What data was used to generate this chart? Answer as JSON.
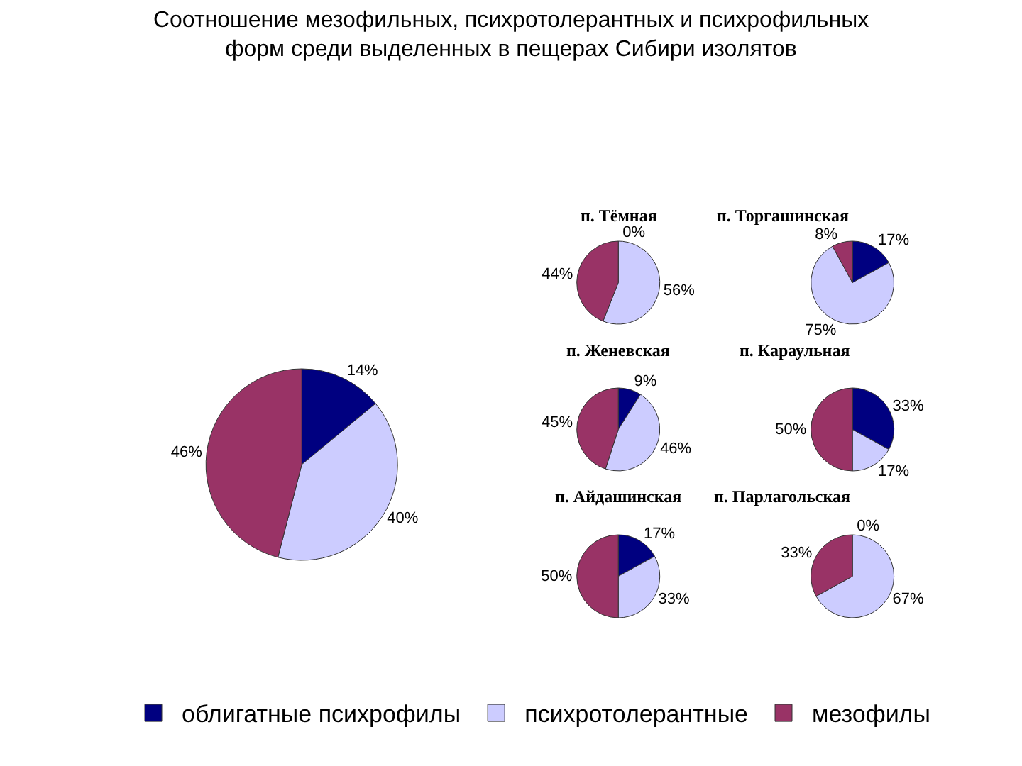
{
  "chart_data": [
    {
      "type": "pie",
      "title": "Соотношение мезофильных, психротолерантных и психрофильных форм среди выделенных в пещерах Сибири изолятов",
      "categories": [
        "облигатные психрофилы",
        "психротолерантные",
        "мезофилы"
      ],
      "values": [
        14,
        40,
        46
      ],
      "value_labels": [
        "14%",
        "40%",
        "46%"
      ],
      "colors": [
        "#000080",
        "#ccccff",
        "#993366"
      ],
      "legend": "bottom"
    },
    {
      "type": "pie",
      "title": "п. Тёмная",
      "categories": [
        null,
        null,
        null
      ],
      "values": [
        0,
        56,
        44
      ],
      "value_labels": [
        "0%",
        "56%",
        "44%"
      ],
      "colors": [
        "#000080",
        "#ccccff",
        "#993366"
      ]
    },
    {
      "type": "pie",
      "title": "п. Торгашинская",
      "categories": [
        null,
        null,
        null
      ],
      "values": [
        17,
        75,
        8
      ],
      "value_labels": [
        "17%",
        "75%",
        "8%"
      ],
      "colors": [
        "#000080",
        "#ccccff",
        "#993366"
      ]
    },
    {
      "type": "pie",
      "title": "п. Женевская",
      "categories": [
        null,
        null,
        null
      ],
      "values": [
        9,
        46,
        45
      ],
      "value_labels": [
        "9%",
        "46%",
        "45%"
      ],
      "colors": [
        "#000080",
        "#ccccff",
        "#993366"
      ]
    },
    {
      "type": "pie",
      "title": "п. Караульная",
      "categories": [
        null,
        null,
        null
      ],
      "values": [
        33,
        17,
        50
      ],
      "value_labels": [
        "33%",
        "17%",
        "50%"
      ],
      "colors": [
        "#000080",
        "#ccccff",
        "#993366"
      ]
    },
    {
      "type": "pie",
      "title": "п. Айдашинская",
      "categories": [
        null,
        null,
        null
      ],
      "values": [
        17,
        33,
        50
      ],
      "value_labels": [
        "17%",
        "33%",
        "50%"
      ],
      "colors": [
        "#000080",
        "#ccccff",
        "#993366"
      ]
    },
    {
      "type": "pie",
      "title": "п. Парлагольская",
      "categories": [
        null,
        null,
        null
      ],
      "values": [
        0,
        67,
        33
      ],
      "value_labels": [
        "0%",
        "67%",
        "33%"
      ],
      "colors": [
        "#000080",
        "#ccccff",
        "#993366"
      ]
    }
  ]
}
